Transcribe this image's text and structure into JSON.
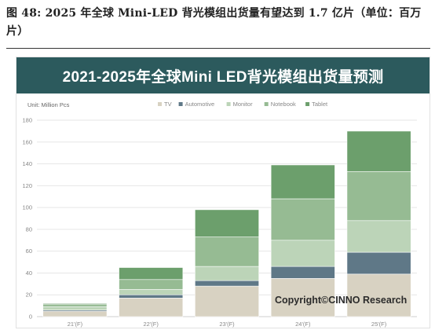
{
  "caption": {
    "text": "图 48: 2025 年全球 Mini-LED 背光模组出货量有望达到 1.7 亿片（单位：百万片）"
  },
  "footer": {
    "copyright": "Copyright©CINNO Research"
  },
  "chart_data": {
    "type": "bar",
    "stacked": true,
    "title": "2021-2025年全球Mini LED背光模组出货量预测",
    "unit_label": "Unit: Million Pcs",
    "categories": [
      "21'(F)",
      "22'(F)",
      "23'(F)",
      "24'(F)",
      "25'(F)"
    ],
    "ylim": [
      0,
      180
    ],
    "yticks": [
      0,
      20,
      40,
      60,
      80,
      100,
      120,
      140,
      160,
      180
    ],
    "grid": true,
    "legend_position": "top",
    "series": [
      {
        "name": "TV",
        "color": "#d8d2c2",
        "values": [
          5,
          17,
          28,
          35,
          39
        ]
      },
      {
        "name": "Automotive",
        "color": "#5f7887",
        "values": [
          1,
          3,
          5,
          11,
          20
        ]
      },
      {
        "name": "Monitor",
        "color": "#bcd4b8",
        "values": [
          3,
          5,
          13,
          24,
          29
        ]
      },
      {
        "name": "Notebook",
        "color": "#96bb93",
        "values": [
          2,
          9,
          27,
          38,
          45
        ]
      },
      {
        "name": "Tablet",
        "color": "#6c9f6c",
        "values": [
          1,
          11,
          25,
          31,
          37
        ]
      }
    ]
  }
}
